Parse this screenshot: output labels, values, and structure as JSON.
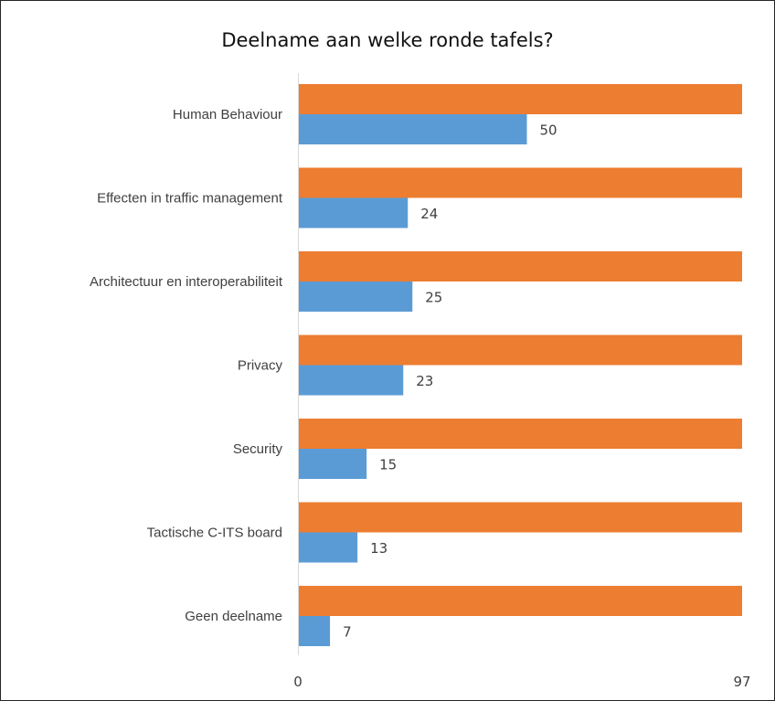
{
  "chart_data": {
    "type": "bar",
    "orientation": "horizontal",
    "title": "Deelname aan welke ronde tafels?",
    "categories": [
      "Human Behaviour",
      "Effecten in traffic management",
      "Architectuur en interoperabiliteit",
      "Privacy",
      "Security",
      "Tactische C-ITS board",
      "Geen deelname"
    ],
    "series": [
      {
        "values": [
          97,
          97,
          97,
          97,
          97,
          97,
          97
        ],
        "color": "#ED7D31",
        "show_labels": false
      },
      {
        "values": [
          50,
          24,
          25,
          23,
          15,
          13,
          7
        ],
        "color": "#5B9BD5",
        "show_labels": true
      }
    ],
    "xlim": [
      0,
      97
    ],
    "x_ticks": [
      "0",
      "97"
    ],
    "grid": false,
    "legend": "none"
  }
}
